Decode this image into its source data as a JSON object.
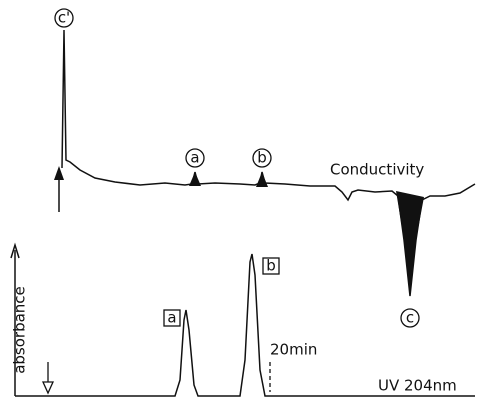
{
  "upper_trace": {
    "label": "Conductivity",
    "peaks": [
      {
        "label": "c'"
      },
      {
        "label": "a"
      },
      {
        "label": "b"
      },
      {
        "label": "c"
      }
    ]
  },
  "lower_trace": {
    "label": "UV 204nm",
    "y_axis_label": "absorbance",
    "peaks": [
      {
        "label": "a"
      },
      {
        "label": "b"
      }
    ],
    "time_marker": "20min"
  }
}
